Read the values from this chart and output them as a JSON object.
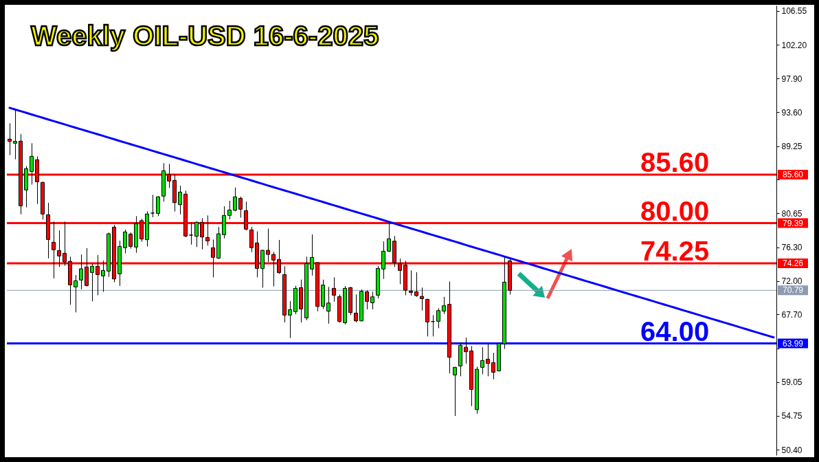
{
  "chart_data": {
    "type": "candlestick",
    "title": "Weekly OIL-USD 16-6-2025",
    "categories": [
      null,
      null,
      null,
      null,
      null,
      null,
      null,
      null,
      null,
      null,
      null,
      null,
      null,
      null,
      null,
      null,
      null,
      null,
      null,
      null,
      null,
      null,
      null,
      null,
      null,
      null,
      null,
      null,
      null,
      null,
      null,
      null,
      null,
      null,
      null,
      null,
      null,
      null,
      null,
      null,
      null,
      null,
      null,
      null,
      null,
      null,
      null,
      null,
      null,
      null,
      null,
      null,
      null,
      null,
      null,
      null,
      null,
      null,
      null,
      null,
      null,
      null,
      null,
      null,
      null,
      null,
      null,
      null,
      null,
      null,
      null,
      null,
      null,
      null,
      null,
      null,
      null,
      null,
      null,
      null,
      null,
      null,
      null,
      null,
      null,
      null,
      null,
      null,
      null,
      null,
      null,
      null,
      null,
      null,
      null,
      null,
      null,
      null,
      null,
      null,
      null,
      null,
      null,
      null,
      null,
      null,
      null,
      null,
      null,
      null,
      null,
      null,
      null,
      null,
      null,
      null,
      null,
      null,
      null,
      null,
      null,
      null,
      null,
      null,
      null,
      null,
      null,
      null,
      null,
      null,
      null,
      null,
      null,
      null,
      null,
      null,
      null,
      null,
      null,
      null
    ],
    "ohlc": [
      [
        90.15,
        92.17,
        88.1,
        89.86
      ],
      [
        89.62,
        93.88,
        87.57,
        89.86
      ],
      [
        89.89,
        90.8,
        80.53,
        81.61
      ],
      [
        83.64,
        86.69,
        81.41,
        86.37
      ],
      [
        86.01,
        89.62,
        84.34,
        87.95
      ],
      [
        87.51,
        87.95,
        81.85,
        84.69
      ],
      [
        84.61,
        84.7,
        79.85,
        80.56
      ],
      [
        80.47,
        82.0,
        74.89,
        77.3
      ],
      [
        76.95,
        79.59,
        72.31,
        75.98
      ],
      [
        75.89,
        78.47,
        73.78,
        75.19
      ],
      [
        75.54,
        79.59,
        73.93,
        74.43
      ],
      [
        74.51,
        75.1,
        68.94,
        71.49
      ],
      [
        71.23,
        72.75,
        67.97,
        72.02
      ],
      [
        72.11,
        75.39,
        70.93,
        73.55
      ],
      [
        73.78,
        76.19,
        71.29,
        71.4
      ],
      [
        73.08,
        74.22,
        69.38,
        73.87
      ],
      [
        73.87,
        75.31,
        70.17,
        72.81
      ],
      [
        72.64,
        74.6,
        70.61,
        73.34
      ],
      [
        73.25,
        78.18,
        72.52,
        78.03
      ],
      [
        78.88,
        79.15,
        71.82,
        72.25
      ],
      [
        72.9,
        77.16,
        71.35,
        76.42
      ],
      [
        76.25,
        78.57,
        75.51,
        78.27
      ],
      [
        78.0,
        78.18,
        76.13,
        76.42
      ],
      [
        76.33,
        80.29,
        75.6,
        79.32
      ],
      [
        79.71,
        79.94,
        77.01,
        77.36
      ],
      [
        77.27,
        80.91,
        76.39,
        80.56
      ],
      [
        80.68,
        83.02,
        80.15,
        80.68
      ],
      [
        80.64,
        82.85,
        80.29,
        82.76
      ],
      [
        82.85,
        87.07,
        82.14,
        86.1
      ],
      [
        85.6,
        86.98,
        83.9,
        84.78
      ],
      [
        84.87,
        85.6,
        80.88,
        82.02
      ],
      [
        81.76,
        84.19,
        80.53,
        83.37
      ],
      [
        83.11,
        83.55,
        77.6,
        77.74
      ],
      [
        77.86,
        79.5,
        76.65,
        77.86
      ],
      [
        77.71,
        79.62,
        76.33,
        79.5
      ],
      [
        79.5,
        80.03,
        76.04,
        77.62
      ],
      [
        77.56,
        80.38,
        76.51,
        77.12
      ],
      [
        76.24,
        77.3,
        72.46,
        75.01
      ],
      [
        74.92,
        78.91,
        74.8,
        78.03
      ],
      [
        77.92,
        81.55,
        77.45,
        80.38
      ],
      [
        80.38,
        82.26,
        79.88,
        81.08
      ],
      [
        81.03,
        83.96,
        80.91,
        82.76
      ],
      [
        82.58,
        82.79,
        80.09,
        81.17
      ],
      [
        81.0,
        82.14,
        78.47,
        78.62
      ],
      [
        78.53,
        78.91,
        75.68,
        76.24
      ],
      [
        76.86,
        78.33,
        72.46,
        73.6
      ],
      [
        73.57,
        75.98,
        71.14,
        75.92
      ],
      [
        75.92,
        78.71,
        74.43,
        75.39
      ],
      [
        75.39,
        75.69,
        71.29,
        74.66
      ],
      [
        74.75,
        77.24,
        72.9,
        73.05
      ],
      [
        72.81,
        73.87,
        66.68,
        67.62
      ],
      [
        67.62,
        69.41,
        64.69,
        68.32
      ],
      [
        68.06,
        71.37,
        67.74,
        71.05
      ],
      [
        71.14,
        72.16,
        66.68,
        68.41
      ],
      [
        67.27,
        75.1,
        66.97,
        74.22
      ],
      [
        73.52,
        77.95,
        72.69,
        75.01
      ],
      [
        74.34,
        74.4,
        68.12,
        68.73
      ],
      [
        68.76,
        72.16,
        68.41,
        71.46
      ],
      [
        68.12,
        71.23,
        66.53,
        69.17
      ],
      [
        71.05,
        72.46,
        69.35,
        70.17
      ],
      [
        69.99,
        70.26,
        66.65,
        66.82
      ],
      [
        66.65,
        71.34,
        66.44,
        71.05
      ],
      [
        71.14,
        71.23,
        67.62,
        67.94
      ],
      [
        67.88,
        70.26,
        66.71,
        66.88
      ],
      [
        66.88,
        70.9,
        66.85,
        70.67
      ],
      [
        70.61,
        70.81,
        68.35,
        69.38
      ],
      [
        69.2,
        70.61,
        68.35,
        69.96
      ],
      [
        70.17,
        73.9,
        69.76,
        73.6
      ],
      [
        73.52,
        77.06,
        72.25,
        75.8
      ],
      [
        75.8,
        79.5,
        75.7,
        77.39
      ],
      [
        77.09,
        77.74,
        73.78,
        74.37
      ],
      [
        74.22,
        74.86,
        71.58,
        73.34
      ],
      [
        74.04,
        74.57,
        70.17,
        70.81
      ],
      [
        70.7,
        73.34,
        70.11,
        70.52
      ],
      [
        70.61,
        73.11,
        69.96,
        70.11
      ],
      [
        70.02,
        71.14,
        68.2,
        69.73
      ],
      [
        69.64,
        69.7,
        64.89,
        66.74
      ],
      [
        66.8,
        67.62,
        64.89,
        66.8
      ],
      [
        66.83,
        68.5,
        65.94,
        68.2
      ],
      [
        68.14,
        69.96,
        67.76,
        68.82
      ],
      [
        69.0,
        71.93,
        60.14,
        62.22
      ],
      [
        59.96,
        61.0,
        54.71,
        60.93
      ],
      [
        61.11,
        64.1,
        59.79,
        63.75
      ],
      [
        63.51,
        64.74,
        61.4,
        62.93
      ],
      [
        63.04,
        63.66,
        55.97,
        58.11
      ],
      [
        55.53,
        61.02,
        55.0,
        60.69
      ],
      [
        60.93,
        63.51,
        60.05,
        61.81
      ],
      [
        61.98,
        63.95,
        59.79,
        61.43
      ],
      [
        61.54,
        62.78,
        59.4,
        60.31
      ],
      [
        60.49,
        64.04,
        60.4,
        63.98
      ],
      [
        63.95,
        75.1,
        63.3,
        71.84
      ],
      [
        74.57,
        74.81,
        70.26,
        70.79
      ],
      null,
      null,
      null,
      null,
      null,
      null,
      null,
      null,
      null,
      null,
      null,
      null,
      null,
      null,
      null,
      null,
      null,
      null,
      null,
      null,
      null,
      null,
      null,
      null,
      null,
      null,
      null,
      null,
      null,
      null,
      null,
      null,
      null,
      null,
      null,
      null,
      null,
      null,
      null,
      null,
      null,
      null,
      null,
      null,
      null,
      null,
      null,
      null
    ],
    "colors": [
      "#ff0000",
      "#00dc00",
      "#ff0000",
      "#00dc00",
      "#00dc00",
      "#ff0000",
      "#ff0000",
      "#ff0000",
      "#ff0000",
      "#ff0000",
      "#ff0000",
      "#ff0000",
      "#00dc00",
      "#00dc00",
      "#ff0000",
      "#00dc00",
      "#ff0000",
      "#00dc00",
      "#00dc00",
      "#ff0000",
      "#00dc00",
      "#00dc00",
      "#ff0000",
      "#00dc00",
      "#ff0000",
      "#00dc00",
      "#000000",
      "#00dc00",
      "#00dc00",
      "#ff0000",
      "#ff0000",
      "#00dc00",
      "#ff0000",
      "#000000",
      "#00dc00",
      "#ff0000",
      "#ff0000",
      "#ff0000",
      "#00dc00",
      "#00dc00",
      "#00dc00",
      "#00dc00",
      "#ff0000",
      "#ff0000",
      "#ff0000",
      "#ff0000",
      "#00dc00",
      "#ff0000",
      "#ff0000",
      "#ff0000",
      "#ff0000",
      "#00dc00",
      "#00dc00",
      "#ff0000",
      "#00dc00",
      "#00dc00",
      "#ff0000",
      "#00dc00",
      "#00dc00",
      "#ff0000",
      "#ff0000",
      "#00dc00",
      "#ff0000",
      "#ff0000",
      "#00dc00",
      "#ff0000",
      "#00dc00",
      "#00dc00",
      "#00dc00",
      "#00dc00",
      "#ff0000",
      "#ff0000",
      "#ff0000",
      "#ff0000",
      "#ff0000",
      "#ff0000",
      "#ff0000",
      "#000000",
      "#00dc00",
      "#00dc00",
      "#ff0000",
      "#00dc00",
      "#00dc00",
      "#ff0000",
      "#ff0000",
      "#00dc00",
      "#00dc00",
      "#ff0000",
      "#ff0000",
      "#00dc00",
      "#00dc00",
      "#ff0000",
      null,
      null,
      null,
      null,
      null,
      null,
      null,
      null,
      null,
      null,
      null,
      null,
      null,
      null,
      null,
      null,
      null,
      null,
      null,
      null,
      null,
      null,
      null,
      null,
      null,
      null,
      null,
      null,
      null,
      null,
      null,
      null,
      null,
      null,
      null,
      null,
      null,
      null,
      null,
      null,
      null,
      null,
      null,
      null,
      null,
      null,
      null,
      null
    ],
    "series": [
      {
        "type": "line",
        "color": "#0000ff",
        "values": [
          94.15,
          93.94,
          93.73,
          93.52,
          93.3,
          93.09,
          92.88,
          92.67,
          92.46,
          92.25,
          92.04,
          91.82,
          91.61,
          91.4,
          91.19,
          90.98,
          90.77,
          90.56,
          90.34,
          90.13,
          89.92,
          89.71,
          89.5,
          89.29,
          89.08,
          88.87,
          88.65,
          88.44,
          88.23,
          88.02,
          87.81,
          87.6,
          87.39,
          87.17,
          86.96,
          86.75,
          86.54,
          86.33,
          86.12,
          85.91,
          85.69,
          85.48,
          85.27,
          85.06,
          84.85,
          84.64,
          84.43,
          84.21,
          84.0,
          83.79,
          83.58,
          83.37,
          83.16,
          82.95,
          82.73,
          82.52,
          82.31,
          82.1,
          81.89,
          81.68,
          81.47,
          81.25,
          81.04,
          80.83,
          80.62,
          80.41,
          80.2,
          79.99,
          79.77,
          79.56,
          79.35,
          79.14,
          78.93,
          78.72,
          78.51,
          78.3,
          78.08,
          77.87,
          77.66,
          77.45,
          77.24,
          77.03,
          76.82,
          76.6,
          76.39,
          76.18,
          75.97,
          75.76,
          75.55,
          75.34,
          75.12,
          74.91,
          74.7,
          74.49,
          74.28,
          74.07,
          73.86,
          73.64,
          73.43,
          73.22,
          73.01,
          72.8,
          72.59,
          72.38,
          72.16,
          71.95,
          71.74,
          71.53,
          71.32,
          71.11,
          70.9,
          70.68,
          70.47,
          70.26,
          70.05,
          69.84,
          69.63,
          69.42,
          69.2,
          68.99,
          68.78,
          68.57,
          68.36,
          68.15,
          67.94,
          67.73,
          67.51,
          67.3,
          67.09,
          66.88,
          66.67,
          66.46,
          66.25,
          66.03,
          65.82,
          65.61,
          65.4,
          65.19,
          64.98,
          64.77
        ]
      }
    ],
    "ylim": [
      49.7,
      107.25
    ],
    "yticks": [
      {
        "value": 50.4,
        "label": "50.40"
      },
      54.75,
      59.05,
      {
        "value": 63.35,
        "label": null
      },
      {
        "value": 67.7,
        "label": "67.70"
      },
      {
        "value": 72,
        "label": "72.00"
      },
      {
        "value": 76.3,
        "label": "76.30"
      },
      80.65,
      {
        "value": 84.95,
        "label": null
      },
      89.25,
      {
        "value": 93.6,
        "label": "93.60"
      },
      {
        "value": 97.9,
        "label": "97.90"
      },
      {
        "value": 102.2,
        "label": "102.20"
      },
      106.55
    ],
    "ref_lines": [
      {
        "axis": "y",
        "value": 85.6,
        "label": "85.60",
        "color": "#ff0000"
      },
      {
        "axis": "y",
        "value": 79.39,
        "label": "79.39",
        "color": "#ff0000"
      },
      {
        "axis": "y",
        "value": 74.26,
        "label": "74.26",
        "color": "#ff0000"
      },
      {
        "axis": "y",
        "value": 70.79,
        "label": "70.79",
        "color": "#8c9bb0"
      },
      {
        "axis": "y",
        "value": 63.99,
        "label": "63.99",
        "color": "#0000ff"
      }
    ],
    "annotations": [
      {
        "text": "85.60",
        "y": 85.6
      },
      {
        "text": "80.00",
        "y": 79.39
      },
      {
        "text": "74.25",
        "y": 74.26
      },
      {
        "text": "64.00",
        "y": 63.99
      }
    ]
  }
}
